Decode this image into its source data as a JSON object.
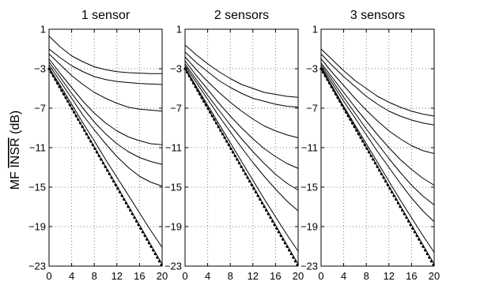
{
  "y_label": {
    "prefix": "MF ",
    "overlined": "INSR",
    "suffix": " (dB)"
  },
  "colors": {
    "line": "#000000",
    "grid": "#7f7f7f",
    "background": "#ffffff"
  },
  "chart_data": [
    {
      "type": "line",
      "title": "1 sensor",
      "xlim": [
        0,
        20
      ],
      "ylim": [
        -23,
        1
      ],
      "x_ticks": [
        0,
        4,
        8,
        12,
        16,
        20
      ],
      "y_ticks": [
        1,
        -3,
        -7,
        -11,
        -15,
        -19,
        -23
      ],
      "grid": true,
      "series": [
        {
          "style": "solid",
          "x": [
            0,
            2,
            4,
            6,
            8,
            10,
            12,
            14,
            16,
            18,
            20
          ],
          "y": [
            0.3,
            -0.8,
            -1.7,
            -2.3,
            -2.8,
            -3.1,
            -3.3,
            -3.4,
            -3.45,
            -3.5,
            -3.5
          ]
        },
        {
          "style": "solid",
          "x": [
            0,
            2,
            4,
            6,
            8,
            10,
            12,
            14,
            16,
            18,
            20
          ],
          "y": [
            -1.0,
            -1.9,
            -2.7,
            -3.3,
            -3.8,
            -4.1,
            -4.3,
            -4.4,
            -4.5,
            -4.55,
            -4.6
          ]
        },
        {
          "style": "solid",
          "x": [
            0,
            2,
            4,
            6,
            8,
            10,
            12,
            14,
            16,
            18,
            20
          ],
          "y": [
            -1.5,
            -2.6,
            -3.7,
            -4.6,
            -5.4,
            -6.0,
            -6.5,
            -6.9,
            -7.1,
            -7.2,
            -7.3
          ]
        },
        {
          "style": "solid",
          "x": [
            0,
            2,
            4,
            6,
            8,
            10,
            12,
            14,
            16,
            18,
            20
          ],
          "y": [
            -2.0,
            -3.5,
            -4.9,
            -6.3,
            -7.5,
            -8.5,
            -9.3,
            -9.9,
            -10.3,
            -10.6,
            -10.7
          ]
        },
        {
          "style": "solid",
          "x": [
            0,
            2,
            4,
            6,
            8,
            10,
            12,
            14,
            16,
            18,
            20
          ],
          "y": [
            -2.3,
            -3.9,
            -5.5,
            -7.0,
            -8.4,
            -9.6,
            -10.6,
            -11.4,
            -12.0,
            -12.4,
            -12.7
          ]
        },
        {
          "style": "solid",
          "x": [
            0,
            2,
            4,
            6,
            8,
            10,
            12,
            14,
            16,
            18,
            20
          ],
          "y": [
            -2.6,
            -4.3,
            -6.0,
            -7.7,
            -9.2,
            -10.6,
            -11.9,
            -13.0,
            -13.9,
            -14.5,
            -14.9
          ]
        },
        {
          "style": "solid",
          "x": [
            0,
            2,
            4,
            6,
            8,
            10,
            12,
            14,
            16,
            18,
            20
          ],
          "y": [
            -2.9,
            -4.7,
            -6.6,
            -8.5,
            -10.3,
            -12.2,
            -14.0,
            -15.8,
            -17.6,
            -19.4,
            -21.1
          ]
        },
        {
          "style": "solid",
          "x": [
            0,
            20
          ],
          "y": [
            -3.0,
            -22.8
          ]
        },
        {
          "style": "dotted",
          "x": [
            0,
            20
          ],
          "y": [
            -3.0,
            -23.0
          ]
        }
      ]
    },
    {
      "type": "line",
      "title": "2 sensors",
      "xlim": [
        0,
        20
      ],
      "ylim": [
        -23,
        1
      ],
      "x_ticks": [
        0,
        4,
        8,
        12,
        16,
        20
      ],
      "y_ticks": [
        1,
        -3,
        -7,
        -11,
        -15,
        -19,
        -23
      ],
      "grid": true,
      "series": [
        {
          "style": "solid",
          "x": [
            0,
            2,
            4,
            6,
            8,
            10,
            12,
            14,
            16,
            18,
            20
          ],
          "y": [
            -0.6,
            -1.6,
            -2.5,
            -3.3,
            -4.0,
            -4.6,
            -5.0,
            -5.4,
            -5.6,
            -5.8,
            -5.9
          ]
        },
        {
          "style": "solid",
          "x": [
            0,
            2,
            4,
            6,
            8,
            10,
            12,
            14,
            16,
            18,
            20
          ],
          "y": [
            -1.3,
            -2.4,
            -3.3,
            -4.2,
            -4.9,
            -5.5,
            -6.0,
            -6.3,
            -6.6,
            -6.8,
            -6.9
          ]
        },
        {
          "style": "solid",
          "x": [
            0,
            2,
            4,
            6,
            8,
            10,
            12,
            14,
            16,
            18,
            20
          ],
          "y": [
            -1.8,
            -3.1,
            -4.3,
            -5.4,
            -6.4,
            -7.3,
            -8.1,
            -8.8,
            -9.3,
            -9.7,
            -10.0
          ]
        },
        {
          "style": "solid",
          "x": [
            0,
            2,
            4,
            6,
            8,
            10,
            12,
            14,
            16,
            18,
            20
          ],
          "y": [
            -2.2,
            -3.7,
            -5.1,
            -6.5,
            -7.8,
            -9.0,
            -10.1,
            -11.1,
            -11.9,
            -12.6,
            -13.1
          ]
        },
        {
          "style": "solid",
          "x": [
            0,
            2,
            4,
            6,
            8,
            10,
            12,
            14,
            16,
            18,
            20
          ],
          "y": [
            -2.5,
            -4.1,
            -5.7,
            -7.2,
            -8.7,
            -10.1,
            -11.4,
            -12.6,
            -13.7,
            -14.6,
            -15.3
          ]
        },
        {
          "style": "solid",
          "x": [
            0,
            2,
            4,
            6,
            8,
            10,
            12,
            14,
            16,
            18,
            20
          ],
          "y": [
            -2.7,
            -4.4,
            -6.1,
            -7.8,
            -9.4,
            -11.0,
            -12.5,
            -13.9,
            -15.2,
            -16.4,
            -17.4
          ]
        },
        {
          "style": "solid",
          "x": [
            0,
            2,
            4,
            6,
            8,
            10,
            12,
            14,
            16,
            18,
            20
          ],
          "y": [
            -2.9,
            -4.8,
            -6.7,
            -8.6,
            -10.5,
            -12.4,
            -14.3,
            -16.2,
            -18.0,
            -19.8,
            -21.5
          ]
        },
        {
          "style": "solid",
          "x": [
            0,
            20
          ],
          "y": [
            -3.0,
            -22.8
          ]
        },
        {
          "style": "dotted",
          "x": [
            0,
            20
          ],
          "y": [
            -3.0,
            -23.0
          ]
        }
      ]
    },
    {
      "type": "line",
      "title": "3 sensors",
      "xlim": [
        0,
        20
      ],
      "ylim": [
        -23,
        1
      ],
      "x_ticks": [
        0,
        4,
        8,
        12,
        16,
        20
      ],
      "y_ticks": [
        1,
        -3,
        -7,
        -11,
        -15,
        -19,
        -23
      ],
      "grid": true,
      "series": [
        {
          "style": "solid",
          "x": [
            0,
            2,
            4,
            6,
            8,
            10,
            12,
            14,
            16,
            18,
            20
          ],
          "y": [
            -1.0,
            -2.1,
            -3.2,
            -4.2,
            -5.0,
            -5.8,
            -6.4,
            -6.9,
            -7.3,
            -7.6,
            -7.8
          ]
        },
        {
          "style": "solid",
          "x": [
            0,
            2,
            4,
            6,
            8,
            10,
            12,
            14,
            16,
            18,
            20
          ],
          "y": [
            -1.5,
            -2.7,
            -3.8,
            -4.8,
            -5.8,
            -6.6,
            -7.3,
            -7.8,
            -8.2,
            -8.5,
            -8.7
          ]
        },
        {
          "style": "solid",
          "x": [
            0,
            2,
            4,
            6,
            8,
            10,
            12,
            14,
            16,
            18,
            20
          ],
          "y": [
            -2.0,
            -3.4,
            -4.7,
            -6.0,
            -7.2,
            -8.3,
            -9.3,
            -10.1,
            -10.8,
            -11.3,
            -11.6
          ]
        },
        {
          "style": "solid",
          "x": [
            0,
            2,
            4,
            6,
            8,
            10,
            12,
            14,
            16,
            18,
            20
          ],
          "y": [
            -2.4,
            -3.9,
            -5.4,
            -6.9,
            -8.3,
            -9.7,
            -11.0,
            -12.2,
            -13.2,
            -14.1,
            -14.8
          ]
        },
        {
          "style": "solid",
          "x": [
            0,
            2,
            4,
            6,
            8,
            10,
            12,
            14,
            16,
            18,
            20
          ],
          "y": [
            -2.6,
            -4.2,
            -5.9,
            -7.5,
            -9.1,
            -10.6,
            -12.1,
            -13.5,
            -14.8,
            -15.9,
            -16.8
          ]
        },
        {
          "style": "solid",
          "x": [
            0,
            2,
            4,
            6,
            8,
            10,
            12,
            14,
            16,
            18,
            20
          ],
          "y": [
            -2.8,
            -4.5,
            -6.3,
            -8.0,
            -9.7,
            -11.4,
            -13.0,
            -14.6,
            -16.1,
            -17.4,
            -18.5
          ]
        },
        {
          "style": "solid",
          "x": [
            0,
            2,
            4,
            6,
            8,
            10,
            12,
            14,
            16,
            18,
            20
          ],
          "y": [
            -2.9,
            -4.8,
            -6.8,
            -8.7,
            -10.6,
            -12.5,
            -14.4,
            -16.3,
            -18.1,
            -19.9,
            -21.6
          ]
        },
        {
          "style": "solid",
          "x": [
            0,
            20
          ],
          "y": [
            -3.0,
            -22.8
          ]
        },
        {
          "style": "dotted",
          "x": [
            0,
            20
          ],
          "y": [
            -3.0,
            -23.0
          ]
        }
      ]
    }
  ]
}
